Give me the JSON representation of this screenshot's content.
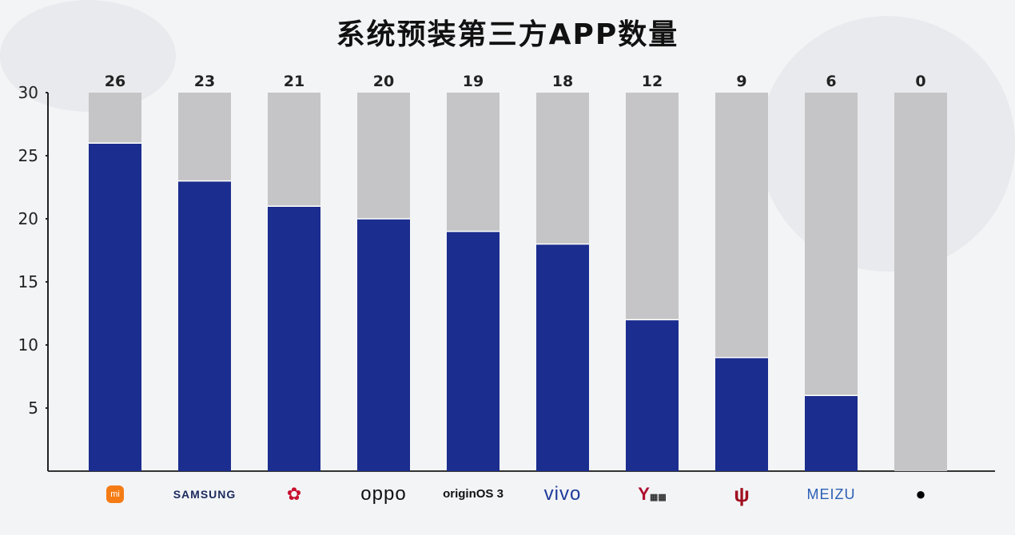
{
  "chart_data": {
    "type": "bar",
    "title": "系统预装第三方APP数量",
    "categories": [
      "Xiaomi",
      "SAMSUNG",
      "Huawei",
      "oppo",
      "originOS 3",
      "vivo",
      "Lenovo Legion",
      "Red Magic",
      "MEIZU",
      "Apple"
    ],
    "category_labels": [
      "mi",
      "SAMSUNG",
      "",
      "oppo",
      "originOS 3",
      "vivo",
      "",
      "",
      "MEIZU",
      ""
    ],
    "category_icons": [
      "xiaomi-logo",
      "",
      "huawei-logo",
      "",
      "",
      "",
      "legion-logo",
      "redmagic-logo",
      "",
      "apple-logo"
    ],
    "values": [
      26,
      23,
      21,
      20,
      19,
      18,
      12,
      9,
      6,
      0
    ],
    "data_labels": [
      "26",
      "23",
      "21",
      "20",
      "19",
      "18",
      "12",
      "9",
      "6",
      "0"
    ],
    "ylim": [
      0,
      30
    ],
    "yticks": [
      "5",
      "10",
      "15",
      "20",
      "25",
      "30"
    ],
    "background_max": 30,
    "colors": {
      "value": "#1b2d8e",
      "remainder": "#c5c5c7",
      "label_blue": "#2a5fb5"
    },
    "grid": false,
    "xlabel": "",
    "ylabel": ""
  }
}
